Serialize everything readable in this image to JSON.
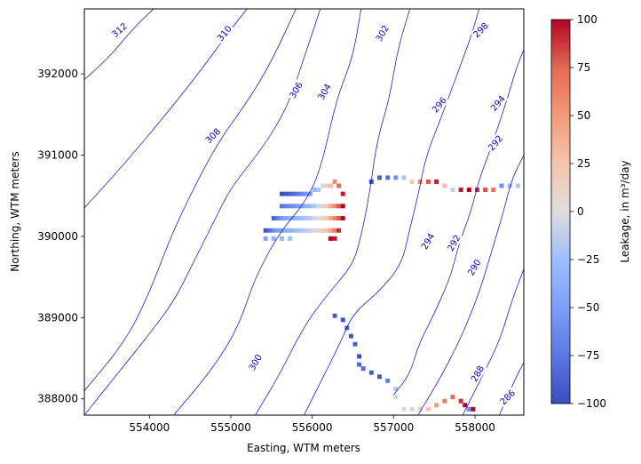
{
  "chart_data": {
    "type": "heatmap",
    "title": "",
    "xlabel": "Easting, WTM meters",
    "ylabel": "Northing, WTM meters",
    "xlim": [
      553200,
      558600
    ],
    "ylim": [
      387800,
      392800
    ],
    "xticks": [
      554000,
      555000,
      556000,
      557000,
      558000
    ],
    "yticks": [
      388000,
      389000,
      390000,
      391000,
      392000
    ],
    "colorbar": {
      "label": "Leakage, in m³/day",
      "colormap": "coolwarm",
      "vmin": -100,
      "vmax": 100,
      "ticks": [
        100,
        75,
        50,
        25,
        0,
        -25,
        -50,
        -75,
        -100
      ],
      "low_color": "#3b4cc0",
      "mid_color": "#dddddd",
      "high_color": "#b40426"
    },
    "contour_color": "#0000cc",
    "contour_labels": [
      {
        "text": "312",
        "x": 553630,
        "y": 392540,
        "angle": -40
      },
      {
        "text": "310",
        "x": 554920,
        "y": 392500,
        "angle": -50
      },
      {
        "text": "308",
        "x": 554780,
        "y": 391240,
        "angle": -45
      },
      {
        "text": "306",
        "x": 555800,
        "y": 391800,
        "angle": -60
      },
      {
        "text": "304",
        "x": 556150,
        "y": 391780,
        "angle": -60
      },
      {
        "text": "302",
        "x": 556860,
        "y": 392500,
        "angle": -60
      },
      {
        "text": "300",
        "x": 555300,
        "y": 388450,
        "angle": -60
      },
      {
        "text": "298",
        "x": 558070,
        "y": 392540,
        "angle": -45
      },
      {
        "text": "296",
        "x": 557560,
        "y": 391620,
        "angle": -50
      },
      {
        "text": "294",
        "x": 558280,
        "y": 391640,
        "angle": -50
      },
      {
        "text": "292",
        "x": 558250,
        "y": 391150,
        "angle": -50
      },
      {
        "text": "294",
        "x": 557420,
        "y": 389940,
        "angle": -60
      },
      {
        "text": "292",
        "x": 557740,
        "y": 389920,
        "angle": -60
      },
      {
        "text": "290",
        "x": 557990,
        "y": 389620,
        "angle": -60
      },
      {
        "text": "288",
        "x": 558030,
        "y": 388310,
        "angle": -60
      },
      {
        "text": "286",
        "x": 558400,
        "y": 388020,
        "angle": -45
      }
    ],
    "contours": [
      {
        "level": 312,
        "points": [
          [
            553200,
            391930
          ],
          [
            553500,
            392200
          ],
          [
            553800,
            392560
          ],
          [
            554050,
            392800
          ]
        ]
      },
      {
        "level": 310,
        "points": [
          [
            553200,
            390350
          ],
          [
            553700,
            390900
          ],
          [
            554200,
            391500
          ],
          [
            554600,
            392000
          ],
          [
            555000,
            392550
          ],
          [
            555200,
            392800
          ]
        ]
      },
      {
        "level": 308,
        "points": [
          [
            553200,
            388100
          ],
          [
            553700,
            388700
          ],
          [
            554000,
            389300
          ],
          [
            554300,
            390100
          ],
          [
            554800,
            391100
          ],
          [
            555200,
            391650
          ],
          [
            555500,
            392150
          ],
          [
            555800,
            392800
          ]
        ]
      },
      {
        "level": 306,
        "points": [
          [
            553200,
            387800
          ],
          [
            553600,
            388300
          ],
          [
            554000,
            388800
          ],
          [
            554300,
            389200
          ],
          [
            554500,
            389600
          ],
          [
            554800,
            390200
          ],
          [
            555000,
            390600
          ],
          [
            555400,
            391100
          ],
          [
            555700,
            391600
          ],
          [
            555900,
            392200
          ],
          [
            556100,
            392800
          ]
        ]
      },
      {
        "level": 304,
        "points": [
          [
            554300,
            387800
          ],
          [
            554800,
            388400
          ],
          [
            555100,
            388900
          ],
          [
            555300,
            389500
          ],
          [
            555600,
            390050
          ],
          [
            555900,
            390400
          ],
          [
            556100,
            390800
          ],
          [
            556300,
            391700
          ],
          [
            556500,
            392200
          ],
          [
            556600,
            392800
          ]
        ]
      },
      {
        "level": 302,
        "points": [
          [
            555300,
            387800
          ],
          [
            555600,
            388300
          ],
          [
            555900,
            388900
          ],
          [
            556200,
            389300
          ],
          [
            556500,
            389650
          ],
          [
            556600,
            390000
          ],
          [
            556700,
            390500
          ],
          [
            556800,
            391200
          ],
          [
            556950,
            391700
          ],
          [
            557050,
            392300
          ],
          [
            557200,
            392800
          ]
        ]
      },
      {
        "level": 300,
        "points": [
          [
            555900,
            387800
          ],
          [
            556100,
            388200
          ],
          [
            556350,
            388700
          ],
          [
            556500,
            389050
          ],
          [
            556800,
            389300
          ],
          [
            557100,
            389650
          ],
          [
            557200,
            390100
          ],
          [
            557300,
            390500
          ],
          [
            557400,
            391000
          ],
          [
            557600,
            391500
          ],
          [
            557800,
            392050
          ],
          [
            557950,
            392450
          ],
          [
            558050,
            392800
          ]
        ]
      },
      {
        "level": 298,
        "points": [
          [
            557000,
            388050
          ],
          [
            557200,
            388300
          ],
          [
            557300,
            388650
          ],
          [
            557500,
            389050
          ],
          [
            557700,
            389500
          ],
          [
            557800,
            389900
          ],
          [
            557950,
            390300
          ],
          [
            558050,
            390700
          ],
          [
            558200,
            391100
          ],
          [
            558400,
            391700
          ],
          [
            558500,
            392050
          ],
          [
            558600,
            392300
          ]
        ]
      },
      {
        "level": 296,
        "points": [
          [
            557300,
            387800
          ],
          [
            557600,
            388300
          ],
          [
            557850,
            388800
          ],
          [
            558050,
            389300
          ],
          [
            558200,
            389800
          ],
          [
            558350,
            390300
          ],
          [
            558450,
            390700
          ],
          [
            558600,
            391000
          ]
        ]
      },
      {
        "level": 294,
        "points": [
          [
            557850,
            387800
          ],
          [
            558050,
            388200
          ],
          [
            558300,
            388700
          ],
          [
            558450,
            389200
          ],
          [
            558600,
            389600
          ]
        ]
      },
      {
        "level": 292,
        "points": [
          [
            558300,
            387800
          ],
          [
            558450,
            388150
          ],
          [
            558600,
            388450
          ]
        ]
      }
    ],
    "cell_size": 50,
    "cells": [
      {
        "x": 555600,
        "y": 390500,
        "value": -100
      },
      {
        "x": 555650,
        "y": 390500,
        "value": -94
      },
      {
        "x": 555700,
        "y": 390500,
        "value": -88
      },
      {
        "x": 555750,
        "y": 390500,
        "value": -82
      },
      {
        "x": 555800,
        "y": 390500,
        "value": -75
      },
      {
        "x": 555850,
        "y": 390500,
        "value": -65
      },
      {
        "x": 555900,
        "y": 390500,
        "value": -55
      },
      {
        "x": 555950,
        "y": 390500,
        "value": -45
      },
      {
        "x": 556000,
        "y": 390550,
        "value": -30
      },
      {
        "x": 556050,
        "y": 390550,
        "value": -20
      },
      {
        "x": 556100,
        "y": 390600,
        "value": -5
      },
      {
        "x": 556150,
        "y": 390600,
        "value": 10
      },
      {
        "x": 556200,
        "y": 390600,
        "value": 30
      },
      {
        "x": 556250,
        "y": 390650,
        "value": 55
      },
      {
        "x": 556300,
        "y": 390600,
        "value": 75
      },
      {
        "x": 556350,
        "y": 390500,
        "value": 95
      },
      {
        "x": 555600,
        "y": 390350,
        "value": -75
      },
      {
        "x": 555650,
        "y": 390350,
        "value": -70
      },
      {
        "x": 555700,
        "y": 390350,
        "value": -62
      },
      {
        "x": 555750,
        "y": 390350,
        "value": -58
      },
      {
        "x": 555800,
        "y": 390350,
        "value": -50
      },
      {
        "x": 555850,
        "y": 390350,
        "value": -42
      },
      {
        "x": 555900,
        "y": 390350,
        "value": -36
      },
      {
        "x": 555950,
        "y": 390350,
        "value": -28
      },
      {
        "x": 556000,
        "y": 390350,
        "value": -18
      },
      {
        "x": 556050,
        "y": 390350,
        "value": -8
      },
      {
        "x": 556100,
        "y": 390350,
        "value": 5
      },
      {
        "x": 556150,
        "y": 390350,
        "value": 20
      },
      {
        "x": 556200,
        "y": 390350,
        "value": 40
      },
      {
        "x": 556250,
        "y": 390350,
        "value": 60
      },
      {
        "x": 556300,
        "y": 390350,
        "value": 78
      },
      {
        "x": 556350,
        "y": 390350,
        "value": 100
      },
      {
        "x": 555500,
        "y": 390200,
        "value": -90
      },
      {
        "x": 555550,
        "y": 390200,
        "value": -70
      },
      {
        "x": 555600,
        "y": 390200,
        "value": -55
      },
      {
        "x": 555650,
        "y": 390200,
        "value": -45
      },
      {
        "x": 555700,
        "y": 390200,
        "value": -40
      },
      {
        "x": 555750,
        "y": 390200,
        "value": -35
      },
      {
        "x": 555800,
        "y": 390200,
        "value": -30
      },
      {
        "x": 555850,
        "y": 390200,
        "value": -25
      },
      {
        "x": 555900,
        "y": 390200,
        "value": -20
      },
      {
        "x": 555950,
        "y": 390200,
        "value": -14
      },
      {
        "x": 556000,
        "y": 390200,
        "value": -6
      },
      {
        "x": 556050,
        "y": 390200,
        "value": 2
      },
      {
        "x": 556100,
        "y": 390200,
        "value": 12
      },
      {
        "x": 556150,
        "y": 390200,
        "value": 25
      },
      {
        "x": 556200,
        "y": 390200,
        "value": 42
      },
      {
        "x": 556250,
        "y": 390200,
        "value": 62
      },
      {
        "x": 556300,
        "y": 390200,
        "value": 80
      },
      {
        "x": 556350,
        "y": 390200,
        "value": 100
      },
      {
        "x": 555400,
        "y": 390050,
        "value": -95
      },
      {
        "x": 555450,
        "y": 390050,
        "value": -80
      },
      {
        "x": 555500,
        "y": 390050,
        "value": -62
      },
      {
        "x": 555550,
        "y": 390050,
        "value": -50
      },
      {
        "x": 555600,
        "y": 390050,
        "value": -42
      },
      {
        "x": 555650,
        "y": 390050,
        "value": -36
      },
      {
        "x": 555700,
        "y": 390050,
        "value": -32
      },
      {
        "x": 555750,
        "y": 390050,
        "value": -28
      },
      {
        "x": 555800,
        "y": 390050,
        "value": -24
      },
      {
        "x": 555850,
        "y": 390050,
        "value": -19
      },
      {
        "x": 555900,
        "y": 390050,
        "value": -14
      },
      {
        "x": 555950,
        "y": 390050,
        "value": -8
      },
      {
        "x": 556000,
        "y": 390050,
        "value": -2
      },
      {
        "x": 556050,
        "y": 390050,
        "value": 6
      },
      {
        "x": 556100,
        "y": 390050,
        "value": 15
      },
      {
        "x": 556150,
        "y": 390050,
        "value": 28
      },
      {
        "x": 556200,
        "y": 390050,
        "value": 45
      },
      {
        "x": 556250,
        "y": 390050,
        "value": 65
      },
      {
        "x": 556300,
        "y": 390050,
        "value": 90
      },
      {
        "x": 555400,
        "y": 389950,
        "value": -45
      },
      {
        "x": 555500,
        "y": 389950,
        "value": -35
      },
      {
        "x": 555600,
        "y": 389950,
        "value": -30
      },
      {
        "x": 555700,
        "y": 389950,
        "value": -25
      },
      {
        "x": 556200,
        "y": 389950,
        "value": 100
      },
      {
        "x": 556250,
        "y": 389950,
        "value": 95
      },
      {
        "x": 556700,
        "y": 390650,
        "value": -95
      },
      {
        "x": 556800,
        "y": 390700,
        "value": -90
      },
      {
        "x": 556900,
        "y": 390700,
        "value": -80
      },
      {
        "x": 557000,
        "y": 390700,
        "value": -60
      },
      {
        "x": 557100,
        "y": 390700,
        "value": -20
      },
      {
        "x": 557200,
        "y": 390650,
        "value": 20
      },
      {
        "x": 557300,
        "y": 390650,
        "value": 60
      },
      {
        "x": 557400,
        "y": 390650,
        "value": 80
      },
      {
        "x": 557500,
        "y": 390650,
        "value": 95
      },
      {
        "x": 557600,
        "y": 390600,
        "value": 30
      },
      {
        "x": 557700,
        "y": 390550,
        "value": -10
      },
      {
        "x": 557800,
        "y": 390550,
        "value": 95
      },
      {
        "x": 557900,
        "y": 390550,
        "value": 100
      },
      {
        "x": 558000,
        "y": 390550,
        "value": 90
      },
      {
        "x": 558100,
        "y": 390550,
        "value": 80
      },
      {
        "x": 558200,
        "y": 390550,
        "value": 70
      },
      {
        "x": 558300,
        "y": 390600,
        "value": -60
      },
      {
        "x": 558400,
        "y": 390600,
        "value": -30
      },
      {
        "x": 558500,
        "y": 390600,
        "value": -20
      },
      {
        "x": 556250,
        "y": 389000,
        "value": -90
      },
      {
        "x": 556350,
        "y": 388950,
        "value": -95
      },
      {
        "x": 556400,
        "y": 388850,
        "value": -85
      },
      {
        "x": 556450,
        "y": 388750,
        "value": -95
      },
      {
        "x": 556500,
        "y": 388650,
        "value": -90
      },
      {
        "x": 556550,
        "y": 388500,
        "value": -100
      },
      {
        "x": 556550,
        "y": 388400,
        "value": -85
      },
      {
        "x": 556600,
        "y": 388350,
        "value": -80
      },
      {
        "x": 556700,
        "y": 388300,
        "value": -90
      },
      {
        "x": 556800,
        "y": 388250,
        "value": -95
      },
      {
        "x": 556900,
        "y": 388200,
        "value": -70
      },
      {
        "x": 557000,
        "y": 388100,
        "value": -20
      },
      {
        "x": 557000,
        "y": 388000,
        "value": -5
      },
      {
        "x": 557100,
        "y": 387850,
        "value": 5
      },
      {
        "x": 557200,
        "y": 387850,
        "value": 10
      },
      {
        "x": 557300,
        "y": 387850,
        "value": 15
      },
      {
        "x": 557400,
        "y": 387850,
        "value": 25
      },
      {
        "x": 557500,
        "y": 387900,
        "value": 50
      },
      {
        "x": 557600,
        "y": 387950,
        "value": 65
      },
      {
        "x": 557700,
        "y": 388000,
        "value": 75
      },
      {
        "x": 557800,
        "y": 387950,
        "value": 90
      },
      {
        "x": 557850,
        "y": 387900,
        "value": 100
      },
      {
        "x": 557900,
        "y": 387850,
        "value": -60
      },
      {
        "x": 557950,
        "y": 387850,
        "value": 100
      }
    ]
  }
}
